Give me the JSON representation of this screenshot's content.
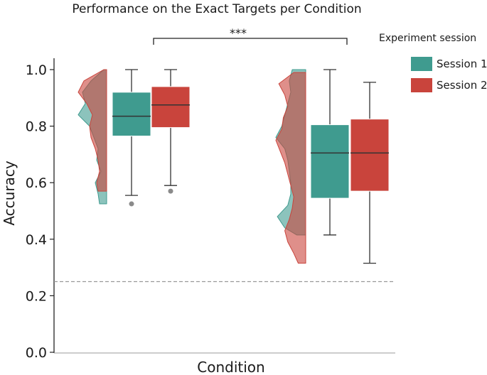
{
  "chart_data": {
    "type": "box",
    "title": "Performance on the Exact Targets per Condition",
    "xlabel": "Condition",
    "ylabel": "Accuracy",
    "ylim": [
      0,
      1
    ],
    "yticks": [
      "0.0",
      "0.2",
      "0.4",
      "0.6",
      "0.8",
      "1.0"
    ],
    "chance_level": 0.25,
    "significance": "***",
    "legend": {
      "title": "Experiment session",
      "placement": "top-right",
      "entries": [
        {
          "name": "Session 1",
          "color": "#3f9b8f"
        },
        {
          "name": "Session 2",
          "color": "#c9443c"
        }
      ]
    },
    "groups": [
      {
        "boxes": [
          {
            "series": "Session 1",
            "whisker_low": 0.555,
            "q1": 0.765,
            "median": 0.835,
            "q3": 0.92,
            "whisker_high": 1.0,
            "outliers": [
              0.525
            ]
          },
          {
            "series": "Session 2",
            "whisker_low": 0.59,
            "q1": 0.795,
            "median": 0.875,
            "q3": 0.94,
            "whisker_high": 1.0,
            "outliers": [
              0.57
            ]
          }
        ],
        "density_range": [
          0.525,
          1.0
        ]
      },
      {
        "boxes": [
          {
            "series": "Session 1",
            "whisker_low": 0.415,
            "q1": 0.545,
            "median": 0.705,
            "q3": 0.805,
            "whisker_high": 1.0,
            "outliers": []
          },
          {
            "series": "Session 2",
            "whisker_low": 0.315,
            "q1": 0.57,
            "median": 0.705,
            "q3": 0.825,
            "whisker_high": 0.955,
            "outliers": []
          }
        ],
        "density_range": [
          0.315,
          1.0
        ]
      }
    ]
  }
}
